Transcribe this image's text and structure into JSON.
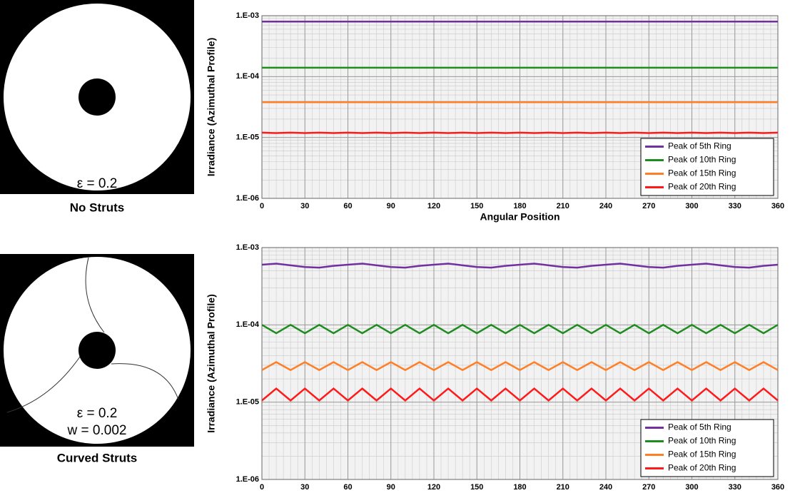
{
  "apertures": [
    {
      "labels": [
        "ε = 0.2"
      ],
      "caption": "No Struts"
    },
    {
      "labels": [
        "ε = 0.2",
        "w = 0.002"
      ],
      "caption": "Curved Struts"
    }
  ],
  "chart_data": [
    {
      "type": "line",
      "xlabel": "Angular Position",
      "ylabel": "Irradiance (Azimuthal Profile)",
      "yscale": "log",
      "grid": true,
      "legend": "lower right",
      "x": [
        0,
        10,
        20,
        30,
        40,
        50,
        60,
        70,
        80,
        90,
        100,
        110,
        120,
        130,
        140,
        150,
        160,
        170,
        180,
        190,
        200,
        210,
        220,
        230,
        240,
        250,
        260,
        270,
        280,
        290,
        300,
        310,
        320,
        330,
        340,
        350,
        360
      ],
      "xlim": [
        0,
        360
      ],
      "xticks": [
        0,
        30,
        60,
        90,
        120,
        150,
        180,
        210,
        240,
        270,
        300,
        330,
        360
      ],
      "ylim": [
        1e-06,
        0.001
      ],
      "yticks": [
        {
          "value": 1e-06,
          "label": "1.E-06"
        },
        {
          "value": 1e-05,
          "label": "1.E-05"
        },
        {
          "value": 0.0001,
          "label": "1.E-04"
        },
        {
          "value": 0.001,
          "label": "1.E-03"
        }
      ],
      "series": [
        {
          "name": "Peak of 5th Ring",
          "color": "#7030a0",
          "values": [
            0.0008,
            0.0008,
            0.0008,
            0.0008,
            0.0008,
            0.0008,
            0.0008,
            0.0008,
            0.0008,
            0.0008,
            0.0008,
            0.0008,
            0.0008,
            0.0008,
            0.0008,
            0.0008,
            0.0008,
            0.0008,
            0.0008,
            0.0008,
            0.0008,
            0.0008,
            0.0008,
            0.0008,
            0.0008,
            0.0008,
            0.0008,
            0.0008,
            0.0008,
            0.0008,
            0.0008,
            0.0008,
            0.0008,
            0.0008,
            0.0008,
            0.0008,
            0.0008
          ]
        },
        {
          "name": "Peak of 10th Ring",
          "color": "#1e8c1e",
          "values": [
            0.00014,
            0.00014,
            0.00014,
            0.00014,
            0.00014,
            0.00014,
            0.00014,
            0.00014,
            0.00014,
            0.00014,
            0.00014,
            0.00014,
            0.00014,
            0.00014,
            0.00014,
            0.00014,
            0.00014,
            0.00014,
            0.00014,
            0.00014,
            0.00014,
            0.00014,
            0.00014,
            0.00014,
            0.00014,
            0.00014,
            0.00014,
            0.00014,
            0.00014,
            0.00014,
            0.00014,
            0.00014,
            0.00014,
            0.00014,
            0.00014,
            0.00014,
            0.00014
          ]
        },
        {
          "name": "Peak of 15th Ring",
          "color": "#ff7f27",
          "values": [
            3.8e-05,
            3.8e-05,
            3.8e-05,
            3.8e-05,
            3.8e-05,
            3.8e-05,
            3.8e-05,
            3.8e-05,
            3.8e-05,
            3.8e-05,
            3.8e-05,
            3.8e-05,
            3.8e-05,
            3.8e-05,
            3.8e-05,
            3.8e-05,
            3.8e-05,
            3.8e-05,
            3.8e-05,
            3.8e-05,
            3.8e-05,
            3.8e-05,
            3.8e-05,
            3.8e-05,
            3.8e-05,
            3.8e-05,
            3.8e-05,
            3.8e-05,
            3.8e-05,
            3.8e-05,
            3.8e-05,
            3.8e-05,
            3.8e-05,
            3.8e-05,
            3.8e-05,
            3.8e-05,
            3.8e-05
          ]
        },
        {
          "name": "Peak of 20th Ring",
          "color": "#ff1a1a",
          "values": [
            1.2e-05,
            1.18e-05,
            1.2e-05,
            1.18e-05,
            1.2e-05,
            1.18e-05,
            1.2e-05,
            1.18e-05,
            1.2e-05,
            1.18e-05,
            1.2e-05,
            1.18e-05,
            1.2e-05,
            1.18e-05,
            1.2e-05,
            1.18e-05,
            1.2e-05,
            1.18e-05,
            1.2e-05,
            1.18e-05,
            1.2e-05,
            1.18e-05,
            1.2e-05,
            1.18e-05,
            1.2e-05,
            1.18e-05,
            1.2e-05,
            1.18e-05,
            1.2e-05,
            1.18e-05,
            1.2e-05,
            1.18e-05,
            1.2e-05,
            1.18e-05,
            1.2e-05,
            1.18e-05,
            1.2e-05
          ]
        }
      ]
    },
    {
      "type": "line",
      "xlabel": "Angular Position",
      "ylabel": "Irradiance (Azimuthal Profile)",
      "yscale": "log",
      "grid": true,
      "legend": "lower right",
      "x": [
        0,
        10,
        20,
        30,
        40,
        50,
        60,
        70,
        80,
        90,
        100,
        110,
        120,
        130,
        140,
        150,
        160,
        170,
        180,
        190,
        200,
        210,
        220,
        230,
        240,
        250,
        260,
        270,
        280,
        290,
        300,
        310,
        320,
        330,
        340,
        350,
        360
      ],
      "xlim": [
        0,
        360
      ],
      "xticks": [
        0,
        30,
        60,
        90,
        120,
        150,
        180,
        210,
        240,
        270,
        300,
        330,
        360
      ],
      "ylim": [
        1e-06,
        0.001
      ],
      "yticks": [
        {
          "value": 1e-06,
          "label": "1.E-06"
        },
        {
          "value": 1e-05,
          "label": "1.E-05"
        },
        {
          "value": 0.0001,
          "label": "1.E-04"
        },
        {
          "value": 0.001,
          "label": "1.E-03"
        }
      ],
      "series": [
        {
          "name": "Peak of 5th Ring",
          "color": "#7030a0",
          "values": [
            0.0006,
            0.00062,
            0.00059,
            0.00056,
            0.00055,
            0.00058,
            0.0006,
            0.00062,
            0.00059,
            0.00056,
            0.00055,
            0.00058,
            0.0006,
            0.00062,
            0.00059,
            0.00056,
            0.00055,
            0.00058,
            0.0006,
            0.00062,
            0.00059,
            0.00056,
            0.00055,
            0.00058,
            0.0006,
            0.00062,
            0.00059,
            0.00056,
            0.00055,
            0.00058,
            0.0006,
            0.00062,
            0.00059,
            0.00056,
            0.00055,
            0.00058,
            0.0006
          ]
        },
        {
          "name": "Peak of 10th Ring",
          "color": "#1e8c1e",
          "values": [
            0.0001,
            7.8e-05,
            0.0001,
            7.8e-05,
            0.0001,
            7.8e-05,
            0.0001,
            7.8e-05,
            0.0001,
            7.8e-05,
            0.0001,
            7.8e-05,
            0.0001,
            7.8e-05,
            0.0001,
            7.8e-05,
            0.0001,
            7.8e-05,
            0.0001,
            7.8e-05,
            0.0001,
            7.8e-05,
            0.0001,
            7.8e-05,
            0.0001,
            7.8e-05,
            0.0001,
            7.8e-05,
            0.0001,
            7.8e-05,
            0.0001,
            7.8e-05,
            0.0001,
            7.8e-05,
            0.0001,
            7.8e-05,
            0.0001
          ]
        },
        {
          "name": "Peak of 15th Ring",
          "color": "#ff7f27",
          "values": [
            2.6e-05,
            3.3e-05,
            2.6e-05,
            3.3e-05,
            2.6e-05,
            3.3e-05,
            2.6e-05,
            3.3e-05,
            2.6e-05,
            3.3e-05,
            2.6e-05,
            3.3e-05,
            2.6e-05,
            3.3e-05,
            2.6e-05,
            3.3e-05,
            2.6e-05,
            3.3e-05,
            2.6e-05,
            3.3e-05,
            2.6e-05,
            3.3e-05,
            2.6e-05,
            3.3e-05,
            2.6e-05,
            3.3e-05,
            2.6e-05,
            3.3e-05,
            2.6e-05,
            3.3e-05,
            2.6e-05,
            3.3e-05,
            2.6e-05,
            3.3e-05,
            2.6e-05,
            3.3e-05,
            2.6e-05
          ]
        },
        {
          "name": "Peak of 20th Ring",
          "color": "#ff1a1a",
          "values": [
            1.05e-05,
            1.5e-05,
            1.05e-05,
            1.5e-05,
            1.05e-05,
            1.5e-05,
            1.05e-05,
            1.5e-05,
            1.05e-05,
            1.5e-05,
            1.05e-05,
            1.5e-05,
            1.05e-05,
            1.5e-05,
            1.05e-05,
            1.5e-05,
            1.05e-05,
            1.5e-05,
            1.05e-05,
            1.5e-05,
            1.05e-05,
            1.5e-05,
            1.05e-05,
            1.5e-05,
            1.05e-05,
            1.5e-05,
            1.05e-05,
            1.5e-05,
            1.05e-05,
            1.5e-05,
            1.05e-05,
            1.5e-05,
            1.05e-05,
            1.5e-05,
            1.05e-05,
            1.5e-05,
            1.05e-05
          ]
        }
      ]
    }
  ]
}
